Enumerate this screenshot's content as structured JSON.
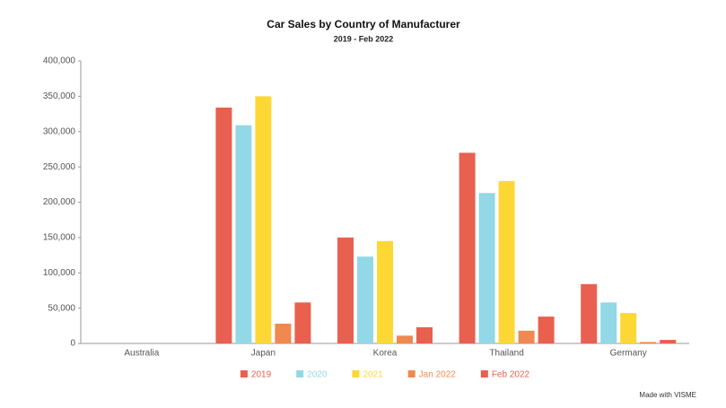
{
  "chart_data": {
    "type": "bar",
    "title": "Car Sales by Country of Manufacturer",
    "subtitle": "2019 - Feb 2022",
    "categories": [
      "Australia",
      "Japan",
      "Korea",
      "Thailand",
      "Germany"
    ],
    "series": [
      {
        "name": "2019",
        "color": "#e8604f",
        "values": [
          0,
          334000,
          150000,
          270000,
          84000
        ]
      },
      {
        "name": "2020",
        "color": "#93d8e6",
        "values": [
          0,
          309000,
          123000,
          213000,
          58000
        ]
      },
      {
        "name": "2021",
        "color": "#fdd835",
        "values": [
          0,
          350000,
          145000,
          230000,
          43000
        ]
      },
      {
        "name": "Jan 2022",
        "color": "#f0884f",
        "values": [
          0,
          28000,
          11000,
          18000,
          2000
        ]
      },
      {
        "name": "Feb 2022",
        "color": "#e9604e",
        "values": [
          0,
          58000,
          23000,
          38000,
          5000
        ]
      }
    ],
    "ylim": [
      0,
      400000
    ],
    "yticks": [
      0,
      {
        "value": 50000,
        "label": "50,000"
      },
      {
        "value": 100000,
        "label": "100,000"
      },
      {
        "value": 150000,
        "label": "150,000"
      },
      {
        "value": 200000,
        "label": "200,000"
      },
      {
        "value": 250000,
        "label": "250,000"
      },
      {
        "value": 300000,
        "label": "300,000"
      },
      {
        "value": 350000,
        "label": "350,000"
      },
      {
        "value": 400000,
        "label": "400,000"
      }
    ],
    "grid": false,
    "legend": "bottom",
    "footer": "Made with VISME"
  }
}
